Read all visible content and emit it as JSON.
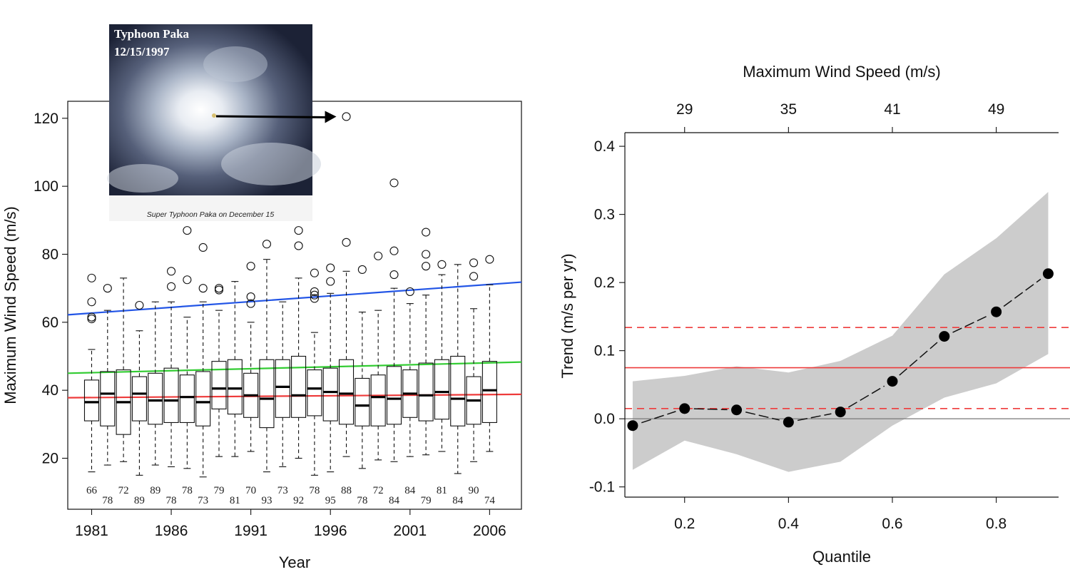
{
  "chart_data": [
    {
      "type": "box",
      "xlabel": "Year",
      "ylabel": "Maximum Wind Speed (m/s)",
      "xlim": [
        1979.5,
        2008
      ],
      "ylim": [
        5,
        125
      ],
      "x_ticks": [
        1981,
        1986,
        1991,
        1996,
        2001,
        2006
      ],
      "y_ticks": [
        20,
        40,
        60,
        80,
        100,
        120
      ],
      "years": [
        1981,
        1982,
        1983,
        1984,
        1985,
        1986,
        1987,
        1988,
        1989,
        1990,
        1991,
        1992,
        1993,
        1994,
        1995,
        1996,
        1997,
        1998,
        1999,
        2000,
        2001,
        2002,
        2003,
        2004,
        2005,
        2006
      ],
      "counts": [
        "66",
        "78",
        "72",
        "89",
        "89",
        "78",
        "78",
        "73",
        "79",
        "81",
        "70",
        "93",
        "73",
        "92",
        "78",
        "95",
        "88",
        "78",
        "72",
        "84",
        "84",
        "79",
        "81",
        "84",
        "90",
        "74"
      ],
      "boxes": [
        {
          "year": 1981,
          "wlo": 16,
          "q1": 31,
          "med": 36.5,
          "q3": 43,
          "whi": 52,
          "out": [
            61,
            61.5,
            66,
            73
          ]
        },
        {
          "year": 1982,
          "wlo": 18,
          "q1": 29.5,
          "med": 39,
          "q3": 45.5,
          "whi": 63.5,
          "out": [
            70
          ]
        },
        {
          "year": 1983,
          "wlo": 19,
          "q1": 27,
          "med": 36.5,
          "q3": 46,
          "whi": 73,
          "out": []
        },
        {
          "year": 1984,
          "wlo": 15,
          "q1": 31,
          "med": 39,
          "q3": 44,
          "whi": 57.5,
          "out": [
            65
          ]
        },
        {
          "year": 1985,
          "wlo": 18,
          "q1": 30,
          "med": 37,
          "q3": 45,
          "whi": 66,
          "out": []
        },
        {
          "year": 1986,
          "wlo": 17.5,
          "q1": 30.5,
          "med": 37,
          "q3": 46.5,
          "whi": 66,
          "out": [
            70.5,
            75
          ]
        },
        {
          "year": 1987,
          "wlo": 17,
          "q1": 30.5,
          "med": 38,
          "q3": 44.5,
          "whi": 61.5,
          "out": [
            72.5,
            87
          ]
        },
        {
          "year": 1988,
          "wlo": 14.5,
          "q1": 29.5,
          "med": 36.5,
          "q3": 45.5,
          "whi": 66,
          "out": [
            70,
            82
          ]
        },
        {
          "year": 1989,
          "wlo": 20.5,
          "q1": 34.5,
          "med": 40.5,
          "q3": 48.5,
          "whi": 63.5,
          "out": [
            69.5,
            70
          ]
        },
        {
          "year": 1990,
          "wlo": 20.5,
          "q1": 33,
          "med": 40.5,
          "q3": 49,
          "whi": 72,
          "out": []
        },
        {
          "year": 1991,
          "wlo": 22,
          "q1": 32,
          "med": 38.5,
          "q3": 45,
          "whi": 60,
          "out": [
            65.5,
            67.5,
            76.5
          ]
        },
        {
          "year": 1992,
          "wlo": 16,
          "q1": 29,
          "med": 37.5,
          "q3": 49,
          "whi": 78.5,
          "out": [
            83
          ]
        },
        {
          "year": 1993,
          "wlo": 17.5,
          "q1": 32,
          "med": 41,
          "q3": 49,
          "whi": 66,
          "out": []
        },
        {
          "year": 1994,
          "wlo": 20,
          "q1": 32,
          "med": 38.5,
          "q3": 50,
          "whi": 73,
          "out": [
            82.5,
            87
          ]
        },
        {
          "year": 1995,
          "wlo": 15,
          "q1": 32.5,
          "med": 40.5,
          "q3": 46,
          "whi": 57,
          "out": [
            67,
            68,
            69,
            74.5
          ]
        },
        {
          "year": 1996,
          "wlo": 16,
          "q1": 31,
          "med": 39.5,
          "q3": 46.5,
          "whi": 68.5,
          "out": [
            72,
            76
          ]
        },
        {
          "year": 1997,
          "wlo": 20.5,
          "q1": 30,
          "med": 39,
          "q3": 49,
          "whi": 75,
          "out": [
            83.5,
            120.5
          ]
        },
        {
          "year": 1998,
          "wlo": 17,
          "q1": 29.5,
          "med": 35.5,
          "q3": 43.5,
          "whi": 63,
          "out": [
            75.5
          ]
        },
        {
          "year": 1999,
          "wlo": 19.5,
          "q1": 29.5,
          "med": 38,
          "q3": 44.5,
          "whi": 63.5,
          "out": [
            79.5
          ]
        },
        {
          "year": 2000,
          "wlo": 19,
          "q1": 30,
          "med": 37.5,
          "q3": 47,
          "whi": 70,
          "out": [
            74,
            81,
            101
          ]
        },
        {
          "year": 2001,
          "wlo": 20.5,
          "q1": 32,
          "med": 39,
          "q3": 46,
          "whi": 65.5,
          "out": [
            69
          ]
        },
        {
          "year": 2002,
          "wlo": 21,
          "q1": 31,
          "med": 38.5,
          "q3": 48,
          "whi": 68,
          "out": [
            76.5,
            80,
            86.5
          ]
        },
        {
          "year": 2003,
          "wlo": 22,
          "q1": 31.5,
          "med": 39.5,
          "q3": 49,
          "whi": 74,
          "out": [
            77
          ]
        },
        {
          "year": 2004,
          "wlo": 15.5,
          "q1": 29.5,
          "med": 37.5,
          "q3": 50,
          "whi": 77,
          "out": []
        },
        {
          "year": 2005,
          "wlo": 19,
          "q1": 30,
          "med": 37,
          "q3": 44,
          "whi": 64,
          "out": [
            73.5,
            77.5
          ]
        },
        {
          "year": 2006,
          "wlo": 22,
          "q1": 30.5,
          "med": 40,
          "q3": 48.5,
          "whi": 71,
          "out": [
            78.5
          ]
        }
      ],
      "trend_lines": [
        {
          "color": "#2255e6",
          "from": [
            1979.5,
            62.2
          ],
          "to": [
            2008,
            71.8
          ]
        },
        {
          "color": "#33cc33",
          "from": [
            1979.5,
            45
          ],
          "to": [
            2008,
            48.3
          ]
        },
        {
          "color": "#ee3b3b",
          "from": [
            1979.5,
            37.8
          ],
          "to": [
            2008,
            38.8
          ]
        }
      ],
      "annotation": {
        "title_line1": "Typhoon Paka",
        "title_line2": "12/15/1997",
        "caption": "Super Typhoon Paka on December 15",
        "points_to": [
          1997,
          120.5
        ]
      }
    },
    {
      "type": "line",
      "xlabel": "Quantile",
      "ylabel": "Trend (m/s per yr)",
      "top_axis_label": "Maximum Wind Speed (m/s)",
      "xlim": [
        0.085,
        0.92
      ],
      "ylim": [
        -0.115,
        0.42
      ],
      "x_ticks": [
        0.2,
        0.4,
        0.6,
        0.8
      ],
      "x_tick_labels": [
        "0.2",
        "0.4",
        "0.6",
        "0.8"
      ],
      "y_ticks": [
        -0.1,
        0.0,
        0.1,
        0.2,
        0.3,
        0.4
      ],
      "y_tick_labels": [
        "-0.1",
        "0.0",
        "0.1",
        "0.2",
        "0.3",
        "0.4"
      ],
      "top_ticks": [
        0.2,
        0.4,
        0.6,
        0.8
      ],
      "top_tick_labels": [
        "29",
        "35",
        "41",
        "49"
      ],
      "x": [
        0.1,
        0.2,
        0.3,
        0.4,
        0.5,
        0.6,
        0.7,
        0.8,
        0.9
      ],
      "y": [
        -0.01,
        0.015,
        0.013,
        -0.005,
        0.01,
        0.055,
        0.121,
        0.157,
        0.213
      ],
      "band_lower": [
        -0.075,
        -0.032,
        -0.052,
        -0.078,
        -0.063,
        -0.01,
        0.031,
        0.052,
        0.095
      ],
      "band_upper": [
        0.055,
        0.063,
        0.077,
        0.068,
        0.085,
        0.122,
        0.212,
        0.265,
        0.333
      ],
      "reference_lines": [
        {
          "y": 0.075,
          "style": "solid",
          "color": "#ee3b3b"
        },
        {
          "y": 0.134,
          "style": "dashed",
          "color": "#ee3b3b"
        },
        {
          "y": 0.015,
          "style": "dashed",
          "color": "#ee3b3b"
        },
        {
          "y": 0.0,
          "style": "solid",
          "color": "#777777"
        }
      ],
      "band_color": "#cccccc"
    }
  ]
}
